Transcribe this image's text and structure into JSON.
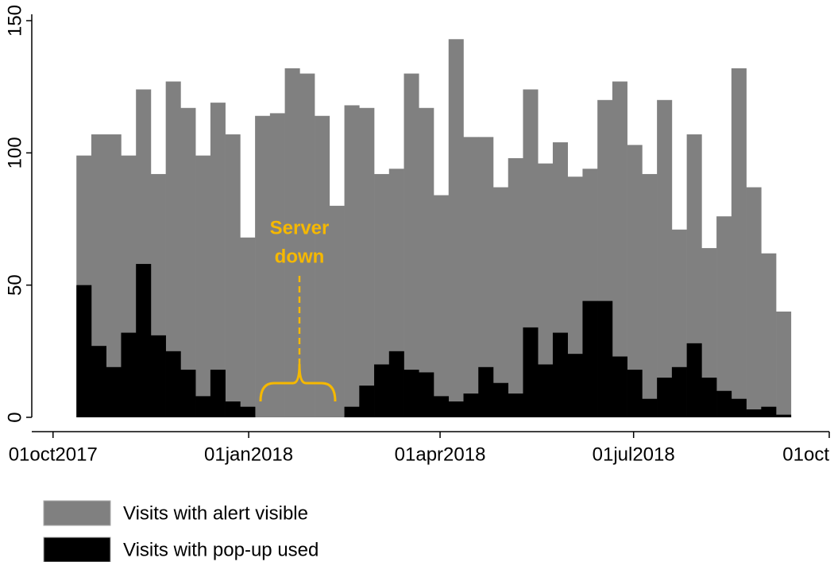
{
  "chart_data": {
    "type": "bar",
    "x": [
      "2017-10-12",
      "2017-10-19",
      "2017-10-26",
      "2017-11-02",
      "2017-11-09",
      "2017-11-16",
      "2017-11-23",
      "2017-11-30",
      "2017-12-07",
      "2017-12-14",
      "2017-12-21",
      "2017-12-28",
      "2018-01-04",
      "2018-01-11",
      "2018-01-18",
      "2018-01-25",
      "2018-02-01",
      "2018-02-08",
      "2018-02-15",
      "2018-02-22",
      "2018-03-01",
      "2018-03-08",
      "2018-03-15",
      "2018-03-22",
      "2018-03-29",
      "2018-04-05",
      "2018-04-12",
      "2018-04-19",
      "2018-04-26",
      "2018-05-03",
      "2018-05-10",
      "2018-05-17",
      "2018-05-24",
      "2018-05-31",
      "2018-06-07",
      "2018-06-14",
      "2018-06-21",
      "2018-06-28",
      "2018-07-05",
      "2018-07-12",
      "2018-07-19",
      "2018-07-26",
      "2018-08-02",
      "2018-08-09",
      "2018-08-16",
      "2018-08-23",
      "2018-08-30",
      "2018-09-06"
    ],
    "series": [
      {
        "name": "Visits with alert visible",
        "color": "#808080",
        "values": [
          99,
          107,
          107,
          99,
          124,
          92,
          127,
          117,
          99,
          119,
          107,
          68,
          114,
          115,
          132,
          130,
          114,
          80,
          118,
          117,
          92,
          94,
          130,
          117,
          84,
          143,
          106,
          106,
          87,
          98,
          124,
          96,
          104,
          91,
          94,
          120,
          127,
          103,
          92,
          120,
          71,
          107,
          64,
          76,
          132,
          87,
          62,
          40
        ]
      },
      {
        "name": "Visits with pop-up used",
        "color": "#000000",
        "values": [
          50,
          27,
          19,
          32,
          58,
          31,
          25,
          18,
          8,
          18,
          6,
          4,
          null,
          null,
          null,
          null,
          null,
          null,
          4,
          12,
          20,
          25,
          18,
          17,
          8,
          6,
          9,
          19,
          13,
          9,
          34,
          20,
          32,
          24,
          44,
          44,
          23,
          18,
          7,
          15,
          19,
          28,
          15,
          10,
          7,
          3,
          4,
          1
        ]
      }
    ],
    "xlim": [
      "2017-09-21",
      "2018-10-01"
    ],
    "xticks": [
      {
        "value": "2017-10-01",
        "label": "01oct2017"
      },
      {
        "value": "2018-01-01",
        "label": "01jan2018"
      },
      {
        "value": "2018-04-01",
        "label": "01apr2018"
      },
      {
        "value": "2018-07-01",
        "label": "01jul2018"
      },
      {
        "value": "2018-10-01",
        "label": "01oct"
      }
    ],
    "ylim": [
      0,
      150
    ],
    "yticks": [
      0,
      50,
      100,
      150
    ],
    "annotation": {
      "text": [
        "Server",
        "down"
      ],
      "color": "#f5b800"
    },
    "legend": "bottom-left"
  }
}
